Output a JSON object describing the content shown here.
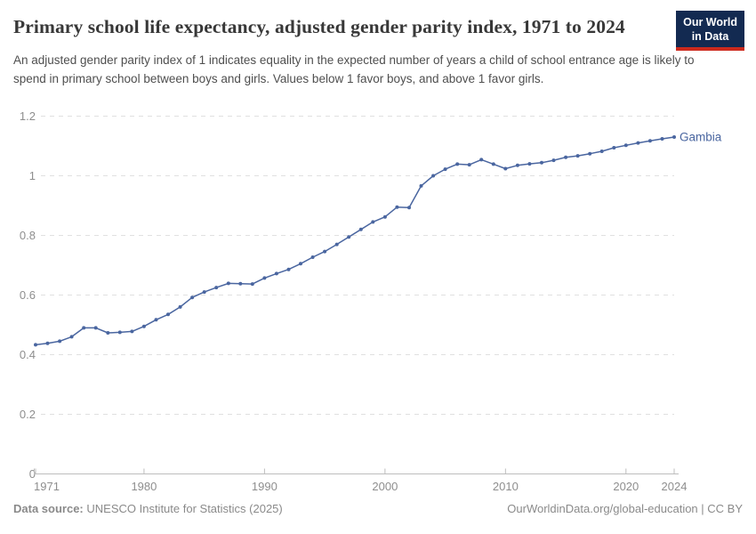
{
  "header": {
    "title": "Primary school life expectancy, adjusted gender parity index, 1971 to 2024",
    "subtitle": "An adjusted gender parity index of 1 indicates equality in the expected number of years a child of school entrance age is likely to spend in primary school between boys and girls. Values below 1 favor boys, and above 1 favor girls."
  },
  "logo": {
    "line1": "Our World",
    "line2": "in Data",
    "bg_color": "#132a51",
    "accent_color": "#cc2a1d"
  },
  "chart_data": {
    "type": "line",
    "title": "Primary school life expectancy, adjusted gender parity index, 1971 to 2024",
    "entity_label": "Gambia",
    "x": [
      1971,
      1972,
      1973,
      1974,
      1975,
      1976,
      1977,
      1978,
      1979,
      1980,
      1981,
      1982,
      1983,
      1984,
      1985,
      1986,
      1987,
      1988,
      1989,
      1990,
      1991,
      1992,
      1993,
      1994,
      1995,
      1996,
      1997,
      1998,
      1999,
      2000,
      2001,
      2002,
      2003,
      2004,
      2005,
      2006,
      2007,
      2008,
      2009,
      2010,
      2011,
      2012,
      2013,
      2014,
      2015,
      2016,
      2017,
      2018,
      2019,
      2020,
      2021,
      2022,
      2023,
      2024
    ],
    "series": [
      {
        "name": "Gambia",
        "values": [
          0.433,
          0.438,
          0.445,
          0.46,
          0.49,
          0.49,
          0.473,
          0.475,
          0.478,
          0.495,
          0.517,
          0.535,
          0.56,
          0.592,
          0.61,
          0.625,
          0.639,
          0.638,
          0.637,
          0.657,
          0.672,
          0.686,
          0.705,
          0.727,
          0.746,
          0.77,
          0.795,
          0.82,
          0.845,
          0.862,
          0.895,
          0.893,
          0.966,
          1.0,
          1.022,
          1.039,
          1.037,
          1.054,
          1.039,
          1.024,
          1.035,
          1.04,
          1.044,
          1.052,
          1.062,
          1.067,
          1.074,
          1.082,
          1.094,
          1.102,
          1.11,
          1.117,
          1.124,
          1.13
        ]
      }
    ],
    "xticks": [
      1971,
      1980,
      1990,
      2000,
      2010,
      2020,
      2024
    ],
    "yticks": [
      0,
      0.2,
      0.4,
      0.6,
      0.8,
      1,
      1.2
    ],
    "xlim": [
      1971,
      2024
    ],
    "ylim": [
      0,
      1.2
    ],
    "grid": "horizontal dashed",
    "legend_position": "end-of-line label",
    "xlabel": "",
    "ylabel": ""
  },
  "footer": {
    "source_label": "Data source:",
    "source_value": "UNESCO Institute for Statistics (2025)",
    "license": "OurWorldinData.org/global-education | CC BY"
  },
  "colors": {
    "line": "#4a66a0",
    "entity_label": "#4a66a0",
    "title": "#383838",
    "subtitle": "#4f4f4f",
    "axis_label": "#8e8e8e",
    "gridline": "#e0e0e0",
    "axis_line": "#bdbdbd",
    "footer_text": "#8a8a8a"
  }
}
